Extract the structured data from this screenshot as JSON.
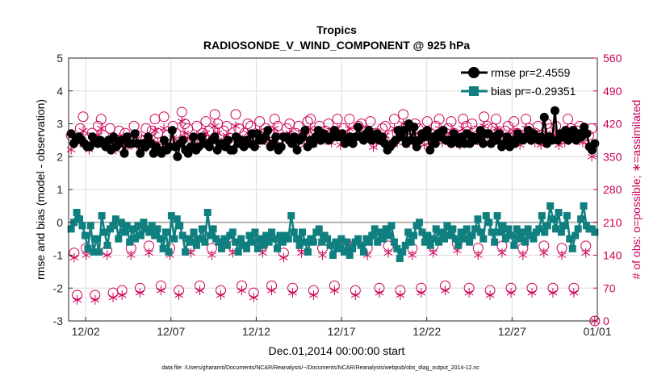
{
  "chart_data": {
    "type": "line",
    "title": "Tropics",
    "subtitle": "RADIOSONDE_V_WIND_COMPONENT @ 925 hPa",
    "xlabel": "Dec.01,2014 00:00:00 start",
    "ylabel_left": "rmse and bias (model - observation)",
    "ylabel_right": "# of obs: o=possible; ∗=assimilated",
    "footer": "data file: /Users/gharamti/Documents/NCAR/Reanalysis/~/Documents/NCAR/Reanalysis/webpub/obs_diag_output_2014-12.nc",
    "xlim": [
      0,
      31
    ],
    "ylim_left": [
      -3,
      5
    ],
    "ylim_right": [
      0,
      560
    ],
    "x_ticks": [
      {
        "value": 1,
        "label": "12/02"
      },
      {
        "value": 6,
        "label": "12/07"
      },
      {
        "value": 11,
        "label": "12/12"
      },
      {
        "value": 16,
        "label": "12/17"
      },
      {
        "value": 21,
        "label": "12/22"
      },
      {
        "value": 26,
        "label": "12/27"
      },
      {
        "value": 31,
        "label": "01/01"
      }
    ],
    "y_ticks_left": [
      "-3",
      "-2",
      "-1",
      "0",
      "1",
      "2",
      "3",
      "4",
      "5"
    ],
    "y_ticks_right": [
      "0",
      "70",
      "140",
      "210",
      "280",
      "350",
      "420",
      "490",
      "560"
    ],
    "grid": true,
    "zero_line": 0,
    "legend_position": "top-right",
    "colors": {
      "rmse": "#000000",
      "bias": "#0f7f7f",
      "obs": "#cc0055",
      "zero": "#b3b3b3",
      "grid": "#dcdcdc"
    },
    "series": [
      {
        "name": "rmse pr=2.4559",
        "key": "rmse",
        "values": [
          2.7,
          2.4,
          2.5,
          2.6,
          2.5,
          2.4,
          2.3,
          2.3,
          2.6,
          2.5,
          2.4,
          2.5,
          2.4,
          2.3,
          2.5,
          2.2,
          2.6,
          2.3,
          2.4,
          2.5,
          2.1,
          2.6,
          2.4,
          2.4,
          2.7,
          2.4,
          2.1,
          2.4,
          2.3,
          2.6,
          2.4,
          2.1,
          2.3,
          2.2,
          2.1,
          2.5,
          2.2,
          2.3,
          2.8,
          2.3,
          2.0,
          2.4,
          2.5,
          2.2,
          2.1,
          2.3,
          2.6,
          2.2,
          2.3,
          2.6,
          2.4,
          2.4,
          2.3,
          2.5,
          2.6,
          2.2,
          2.4,
          2.4,
          2.3,
          2.5,
          2.2,
          2.2,
          2.6,
          2.4,
          2.5,
          2.3,
          2.5,
          2.4,
          2.7,
          2.3,
          2.7,
          2.5,
          2.5,
          2.6,
          2.8,
          2.3,
          2.4,
          2.6,
          2.2,
          2.3,
          2.6,
          2.6,
          2.5,
          2.4,
          2.6,
          2.2,
          2.5,
          2.6,
          2.8,
          2.3,
          2.5,
          2.4,
          2.6,
          2.8,
          2.5,
          2.7,
          2.6,
          2.5,
          2.6,
          2.8,
          2.6,
          2.6,
          2.7,
          2.4,
          2.5,
          2.6,
          2.4,
          2.6,
          2.9,
          2.6,
          2.5,
          2.7,
          2.8,
          2.5,
          2.6,
          2.7,
          2.5,
          2.6,
          2.4,
          2.2,
          2.3,
          2.4,
          2.5,
          2.8,
          2.6,
          2.8,
          2.4,
          3.0,
          2.5,
          2.9,
          2.3,
          2.5,
          2.7,
          2.6,
          2.8,
          2.2,
          2.6,
          2.4,
          2.7,
          2.6,
          2.8,
          2.5,
          2.5,
          2.4,
          2.7,
          2.5,
          2.4,
          2.6,
          2.4,
          2.7,
          2.4,
          2.6,
          2.5,
          2.6,
          2.8,
          2.4,
          2.7,
          2.7,
          2.4,
          2.6,
          2.5,
          2.7,
          2.3,
          2.4,
          2.6,
          2.3,
          2.5,
          2.4,
          2.7,
          2.6,
          2.5,
          2.6,
          2.8,
          2.5,
          2.7,
          2.6,
          2.5,
          2.6,
          3.2,
          2.4,
          2.6,
          2.5,
          3.4,
          2.5,
          2.7,
          2.6,
          2.8,
          2.5,
          2.6,
          2.8,
          2.5,
          2.7,
          2.6,
          2.9,
          2.7,
          2.3,
          2.2,
          2.4
        ]
      },
      {
        "name": "bias pr=-0.29351",
        "key": "bias",
        "values": [
          -0.2,
          0.0,
          0.3,
          0.1,
          -0.1,
          -0.4,
          -0.8,
          -0.1,
          -0.9,
          -0.5,
          -0.9,
          0.2,
          -0.3,
          -0.7,
          -0.2,
          -0.1,
          0.1,
          -0.5,
          0.0,
          -0.3,
          -0.1,
          -0.6,
          -0.2,
          -0.5,
          -0.1,
          -0.4,
          0.0,
          -0.2,
          -0.3,
          -0.1,
          -0.4,
          -0.2,
          -0.5,
          -0.8,
          -0.3,
          -0.9,
          0.2,
          -0.5,
          0.1,
          -0.1,
          -0.4,
          -0.9,
          -0.5,
          -0.6,
          -0.3,
          -0.7,
          -0.5,
          -0.2,
          -0.6,
          0.3,
          -0.4,
          -0.2,
          -0.5,
          -0.6,
          -0.8,
          -0.5,
          -0.7,
          -0.4,
          -0.3,
          -0.6,
          -0.9,
          -0.5,
          -0.7,
          -0.8,
          -0.4,
          -0.6,
          -0.3,
          -0.8,
          -0.5,
          -0.7,
          -0.4,
          -0.6,
          -0.3,
          -0.5,
          -0.8,
          -0.4,
          -0.6,
          -0.4,
          -0.5,
          0.2,
          -0.3,
          -0.5,
          -0.7,
          -0.3,
          -0.6,
          -0.9,
          -0.5,
          -0.6,
          -0.3,
          -0.2,
          -0.6,
          -0.4,
          -0.5,
          -0.7,
          -1.0,
          -0.6,
          -0.8,
          -0.5,
          -0.9,
          -0.6,
          -1.0,
          -0.8,
          -0.6,
          -0.5,
          -0.7,
          -0.9,
          -0.5,
          -0.6,
          -0.4,
          -0.2,
          -0.6,
          -0.3,
          -0.5,
          -0.2,
          -0.4,
          -0.1,
          -0.6,
          -0.8,
          -1.1,
          -0.9,
          -0.7,
          -0.3,
          -0.6,
          -0.4,
          -0.1,
          0.0,
          -0.3,
          -0.6,
          -0.4,
          -0.7,
          -0.5,
          -0.2,
          -0.6,
          -0.3,
          -0.5,
          -0.1,
          -0.4,
          -0.2,
          -0.5,
          -0.7,
          -0.3,
          -0.5,
          -0.2,
          -0.6,
          -0.4,
          -0.2,
          0.1,
          -0.3,
          -0.5,
          0.2,
          0.0,
          -0.3,
          -0.6,
          0.2,
          -0.3,
          -0.1,
          -0.5,
          -0.2,
          -0.4,
          -0.7,
          -0.2,
          -0.5,
          -0.3,
          -0.6,
          -0.2,
          -0.4,
          -0.5,
          -0.3,
          -0.2,
          0.2,
          -0.3,
          -0.1,
          0.5,
          0.1,
          -0.2,
          0.3,
          -0.3,
          -0.1,
          0.2,
          -0.5,
          -0.8,
          -0.4,
          -0.2,
          0.1,
          0.5,
          -0.1,
          -0.2,
          -0.2,
          -0.3
        ]
      },
      {
        "name": "possible",
        "key": "possible",
        "axis": "right",
        "values": [
          395,
          145,
          55,
          410,
          435,
          155,
          390,
          400,
          55,
          415,
          430,
          395,
          150,
          410,
          60,
          385,
          405,
          65,
          400,
          390,
          155,
          415,
          395,
          70,
          385,
          410,
          160,
          405,
          430,
          400,
          75,
          435,
          395,
          155,
          415,
          400,
          65,
          445,
          420,
          410,
          160,
          390,
          415,
          75,
          400,
          425,
          405,
          155,
          440,
          420,
          65,
          405,
          415,
          390,
          160,
          440,
          410,
          75,
          400,
          420,
          415,
          60,
          395,
          425,
          160,
          410,
          400,
          75,
          430,
          415,
          390,
          145,
          410,
          420,
          70,
          400,
          415,
          160,
          395,
          425,
          430,
          65,
          400,
          415,
          155,
          405,
          420,
          400,
          75,
          430,
          395,
          410,
          165,
          430,
          400,
          65,
          415,
          420,
          405,
          155,
          425,
          390,
          400,
          70,
          410,
          415,
          160,
          395,
          430,
          400,
          65,
          440,
          415,
          400,
          155,
          420,
          410,
          70,
          395,
          425,
          400,
          160,
          415,
          430,
          400,
          75,
          410,
          425,
          400,
          165,
          395,
          430,
          415,
          70,
          420,
          405,
          155,
          400,
          435,
          415,
          65,
          410,
          430,
          400,
          160,
          405,
          415,
          70,
          425,
          400,
          395,
          155,
          430,
          410,
          70,
          400,
          415,
          395,
          160,
          420,
          410,
          70,
          415,
          395,
          155,
          400,
          430,
          410,
          70,
          405,
          415,
          400,
          160,
          395,
          410,
          0
        ]
      },
      {
        "name": "assimilated",
        "key": "assimilated",
        "axis": "right",
        "values": [
          365,
          135,
          45,
          380,
          405,
          140,
          365,
          385,
          45,
          395,
          410,
          375,
          140,
          385,
          50,
          365,
          390,
          55,
          375,
          370,
          140,
          395,
          375,
          60,
          365,
          390,
          145,
          385,
          405,
          380,
          65,
          410,
          375,
          140,
          390,
          380,
          55,
          425,
          400,
          390,
          145,
          370,
          395,
          65,
          380,
          400,
          385,
          140,
          415,
          400,
          55,
          385,
          395,
          370,
          145,
          415,
          390,
          65,
          380,
          400,
          395,
          50,
          375,
          405,
          145,
          390,
          380,
          65,
          410,
          395,
          370,
          135,
          390,
          400,
          60,
          380,
          395,
          145,
          375,
          405,
          410,
          55,
          380,
          395,
          140,
          385,
          400,
          380,
          65,
          410,
          375,
          390,
          150,
          410,
          380,
          55,
          395,
          400,
          385,
          140,
          405,
          370,
          380,
          60,
          390,
          395,
          145,
          375,
          410,
          380,
          55,
          420,
          395,
          380,
          140,
          400,
          390,
          60,
          375,
          405,
          380,
          145,
          395,
          410,
          380,
          65,
          390,
          405,
          380,
          150,
          375,
          410,
          395,
          60,
          400,
          385,
          140,
          380,
          415,
          395,
          55,
          390,
          410,
          380,
          145,
          385,
          395,
          60,
          405,
          380,
          375,
          140,
          410,
          390,
          60,
          380,
          395,
          375,
          145,
          400,
          390,
          60,
          395,
          375,
          140,
          380,
          410,
          390,
          60,
          385,
          395,
          380,
          145,
          375,
          350,
          0
        ]
      }
    ]
  }
}
